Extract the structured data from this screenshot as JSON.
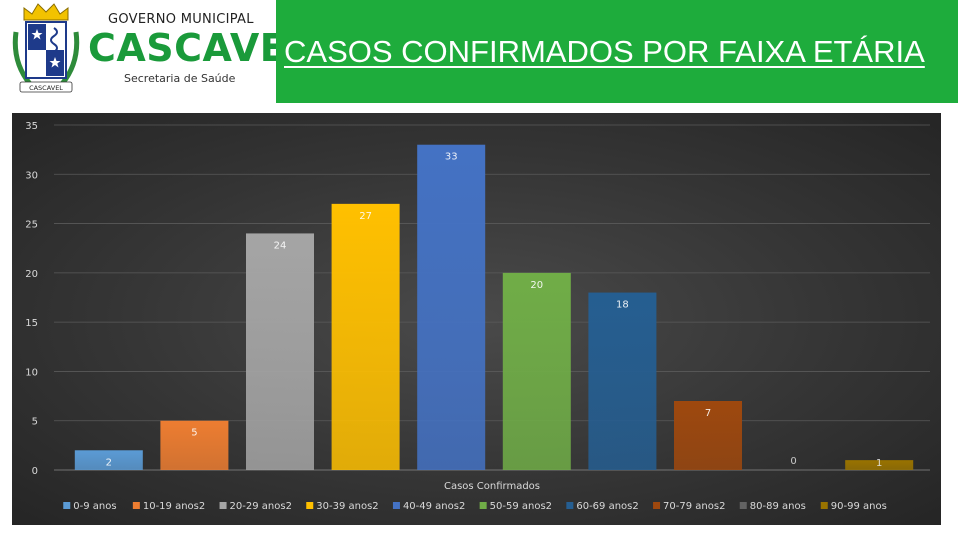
{
  "header": {
    "gov_label": "GOVERNO MUNICIPAL",
    "city_label": "CASCAVEL",
    "dept_label": "Secretaria de Saúde",
    "crest_label": "CASCAVEL",
    "title": "CASOS CONFIRMADOS POR FAIXA ETÁRIA"
  },
  "colors": {
    "title_bar": "#1eac3c",
    "brand_green": "#1a9a3a"
  },
  "chart_data": {
    "type": "bar",
    "xlabel": "Casos Confirmados",
    "ylim": [
      0,
      35
    ],
    "yticks": [
      0,
      5,
      10,
      15,
      20,
      25,
      30,
      35
    ],
    "grid": true,
    "legend_position": "bottom",
    "series": [
      {
        "name": "0-9 anos",
        "value": 2,
        "color": "#5b9bd5"
      },
      {
        "name": "10-19 anos2",
        "value": 5,
        "color": "#ed7d31"
      },
      {
        "name": "20-29 anos2",
        "value": 24,
        "color": "#a5a5a5"
      },
      {
        "name": "30-39 anos2",
        "value": 27,
        "color": "#ffc000"
      },
      {
        "name": "40-49 anos2",
        "value": 33,
        "color": "#4472c4"
      },
      {
        "name": "50-59 anos2",
        "value": 20,
        "color": "#70ad47"
      },
      {
        "name": "60-69 anos2",
        "value": 18,
        "color": "#255e91"
      },
      {
        "name": "70-79 anos2",
        "value": 7,
        "color": "#9e480e"
      },
      {
        "name": "80-89 anos",
        "value": 0,
        "color": "#636363"
      },
      {
        "name": "90-99 anos",
        "value": 1,
        "color": "#997300"
      }
    ]
  }
}
